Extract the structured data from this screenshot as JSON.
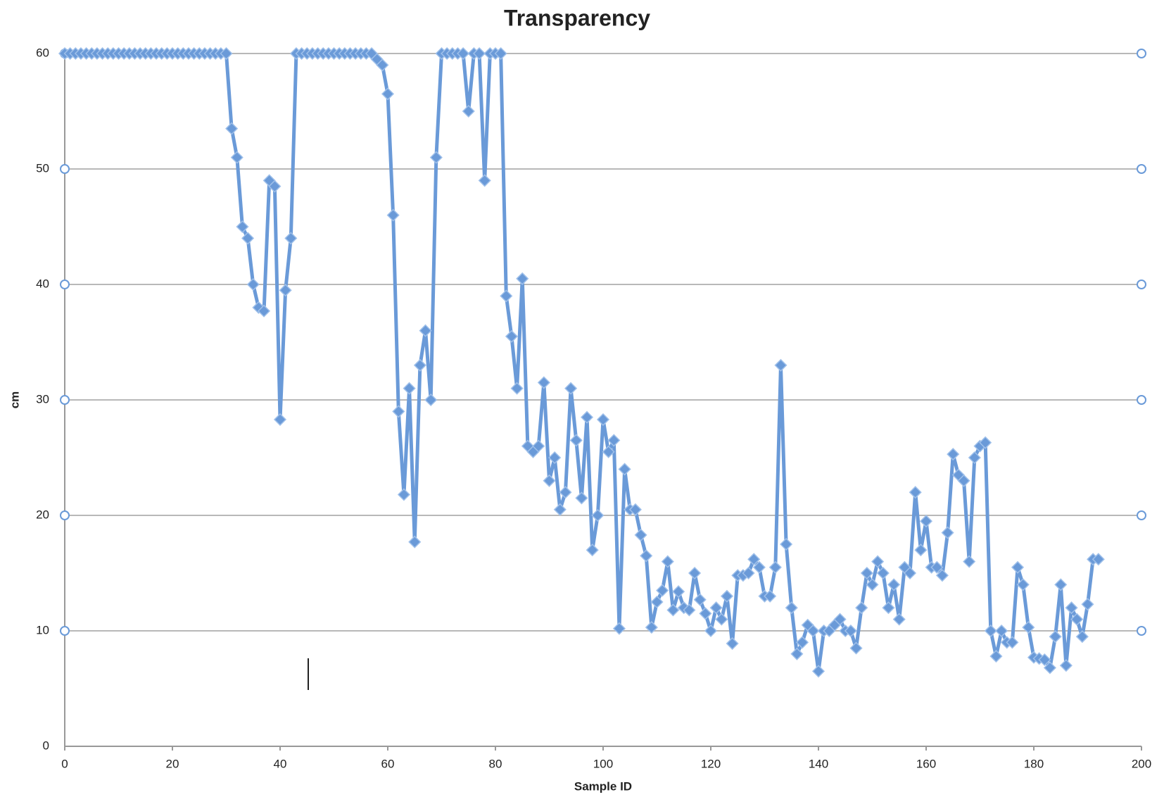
{
  "chart_data": {
    "type": "line",
    "title": "Transparency",
    "xlabel": "Sample ID",
    "ylabel": "cm",
    "x": [
      0,
      1,
      2,
      3,
      4,
      5,
      6,
      7,
      8,
      9,
      10,
      11,
      12,
      13,
      14,
      15,
      16,
      17,
      18,
      19,
      20,
      21,
      22,
      23,
      24,
      25,
      26,
      27,
      28,
      29,
      30,
      31,
      32,
      33,
      34,
      35,
      36,
      37,
      38,
      39,
      40,
      41,
      42,
      43,
      44,
      45,
      46,
      47,
      48,
      49,
      50,
      51,
      52,
      53,
      54,
      55,
      56,
      57,
      58,
      59,
      60,
      61,
      62,
      63,
      64,
      65,
      66,
      67,
      68,
      69,
      70,
      71,
      72,
      73,
      74,
      75,
      76,
      77,
      78,
      79,
      80,
      81,
      82,
      83,
      84,
      85,
      86,
      87,
      88,
      89,
      90,
      91,
      92,
      93,
      94,
      95,
      96,
      97,
      98,
      99,
      100,
      101,
      102,
      103,
      104,
      105,
      106,
      107,
      108,
      109,
      110,
      111,
      112,
      113,
      114,
      115,
      116,
      117,
      118,
      119,
      120,
      121,
      122,
      123,
      124,
      125,
      126,
      127,
      128,
      129,
      130,
      131,
      132,
      133,
      134,
      135,
      136,
      137,
      138,
      139,
      140,
      141,
      142,
      143,
      144,
      145,
      146,
      147,
      148,
      149,
      150,
      151,
      152,
      153,
      154,
      155,
      156,
      157,
      158,
      159,
      160,
      161,
      162,
      163,
      164,
      165,
      166,
      167,
      168,
      169,
      170,
      171,
      172,
      173,
      174,
      175,
      176,
      177,
      178,
      179,
      180,
      181,
      182,
      183,
      184,
      185,
      186,
      187,
      188,
      189,
      190,
      191,
      192
    ],
    "values": [
      60,
      60,
      60,
      60,
      60,
      60,
      60,
      60,
      60,
      60,
      60,
      60,
      60,
      60,
      60,
      60,
      60,
      60,
      60,
      60,
      60,
      60,
      60,
      60,
      60,
      60,
      60,
      60,
      60,
      60,
      60,
      53.5,
      51,
      45,
      44,
      40,
      38,
      37.7,
      49,
      48.5,
      28.3,
      39.5,
      44,
      60,
      60,
      60,
      60,
      60,
      60,
      60,
      60,
      60,
      60,
      60,
      60,
      60,
      60,
      60,
      59.5,
      59,
      56.5,
      46,
      29,
      21.8,
      31,
      17.7,
      33,
      36,
      30,
      51,
      60,
      60,
      60,
      60,
      60,
      55,
      60,
      60,
      49,
      60,
      60,
      60,
      39,
      35.5,
      31,
      40.5,
      26,
      25.5,
      26,
      31.5,
      23,
      25,
      20.5,
      22,
      31,
      26.5,
      21.5,
      28.5,
      17,
      20,
      28.3,
      25.5,
      26.5,
      10.2,
      24,
      20.5,
      20.5,
      18.3,
      16.5,
      10.3,
      12.5,
      13.5,
      16,
      11.8,
      13.4,
      12,
      11.8,
      15,
      12.7,
      11.5,
      10,
      12,
      11,
      13,
      8.9,
      14.8,
      14.8,
      15,
      16.2,
      15.5,
      13,
      13,
      15.5,
      33,
      17.5,
      12,
      8,
      9,
      10.5,
      10,
      6.5,
      10,
      10,
      10.5,
      11,
      10,
      10,
      8.5,
      12,
      15,
      14,
      16,
      15,
      12,
      14,
      11,
      15.5,
      15,
      22,
      17,
      19.5,
      15.5,
      15.5,
      14.8,
      18.5,
      25.3,
      23.5,
      23,
      16,
      25,
      26,
      26.3,
      10,
      7.8,
      10,
      9,
      9,
      15.5,
      14,
      10.3,
      7.7,
      7.6,
      7.5,
      6.8,
      9.5,
      14,
      7,
      12,
      11,
      9.5,
      12.3,
      16.2,
      16.2
    ],
    "color": "#6a9ad8",
    "xlim": [
      0,
      200
    ],
    "xticks": [
      0,
      20,
      40,
      60,
      80,
      100,
      120,
      140,
      160,
      180,
      200
    ],
    "ylim": [
      0,
      60
    ],
    "yticks": [
      0,
      10,
      20,
      30,
      40,
      50,
      60
    ],
    "grid": true
  }
}
